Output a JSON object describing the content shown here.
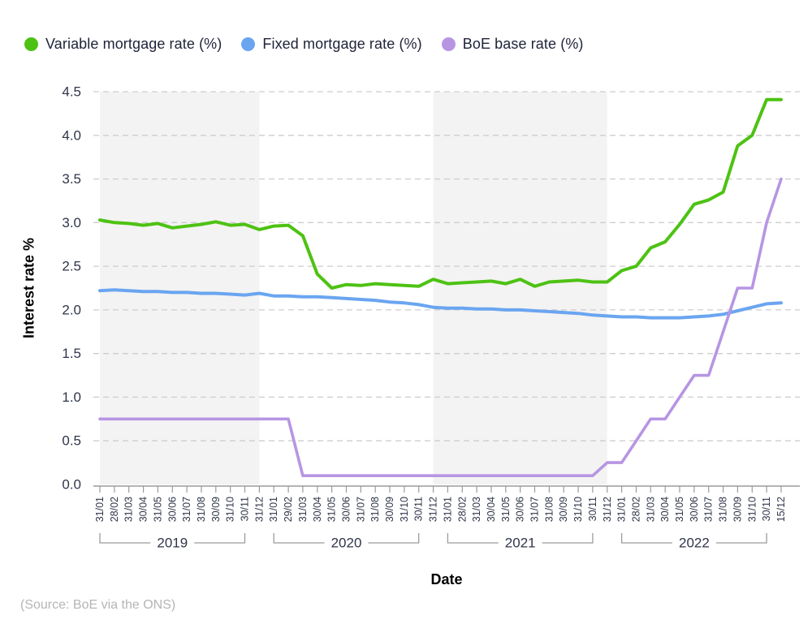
{
  "source": "(Source: BoE via the ONS)",
  "chart_data": {
    "type": "line",
    "title": "",
    "xlabel": "Date",
    "ylabel": "Interest rate %",
    "ylim": [
      0,
      4.5
    ],
    "y_tick_step": 0.5,
    "y_ticks": [
      0.0,
      0.5,
      1.0,
      1.5,
      2.0,
      2.5,
      3.0,
      3.5,
      4.0,
      4.5
    ],
    "grid": "dashed-horizontal",
    "legend_position": "top-left",
    "x_labels": [
      "31/01",
      "28/02",
      "31/03",
      "30/04",
      "31/05",
      "30/06",
      "31/07",
      "31/08",
      "30/09",
      "31/10",
      "30/11",
      "31/12",
      "31/01",
      "29/02",
      "31/03",
      "30/04",
      "31/05",
      "30/06",
      "31/07",
      "31/08",
      "30/09",
      "31/10",
      "30/11",
      "31/12",
      "31/01",
      "28/02",
      "31/03",
      "30/04",
      "31/05",
      "30/06",
      "31/07",
      "31/08",
      "30/09",
      "31/10",
      "30/11",
      "31/12",
      "31/01",
      "28/02",
      "31/03",
      "30/04",
      "31/05",
      "30/06",
      "31/07",
      "31/08",
      "30/09",
      "31/10",
      "30/11",
      "15/12"
    ],
    "year_groups": [
      {
        "label": "2019",
        "start": 0,
        "end": 10
      },
      {
        "label": "2020",
        "start": 12,
        "end": 22
      },
      {
        "label": "2021",
        "start": 24,
        "end": 34
      },
      {
        "label": "2022",
        "start": 36,
        "end": 46
      }
    ],
    "shaded_bands": [
      {
        "start": 0,
        "end": 11
      },
      {
        "start": 23,
        "end": 35
      }
    ],
    "series": [
      {
        "name": "Variable mortgage rate (%)",
        "color": "#4dc213",
        "values": [
          3.03,
          3.0,
          2.99,
          2.97,
          2.99,
          2.94,
          2.96,
          2.98,
          3.01,
          2.97,
          2.98,
          2.92,
          2.96,
          2.97,
          2.85,
          2.41,
          2.25,
          2.29,
          2.28,
          2.3,
          2.29,
          2.28,
          2.27,
          2.35,
          2.3,
          2.31,
          2.32,
          2.33,
          2.3,
          2.35,
          2.27,
          2.32,
          2.33,
          2.34,
          2.32,
          2.32,
          2.45,
          2.5,
          2.71,
          2.78,
          2.98,
          3.21,
          3.26,
          3.35,
          3.88,
          4.0,
          4.41,
          4.41
        ]
      },
      {
        "name": "Fixed mortgage rate (%)",
        "color": "#6aa5f0",
        "values": [
          2.22,
          2.23,
          2.22,
          2.21,
          2.21,
          2.2,
          2.2,
          2.19,
          2.19,
          2.18,
          2.17,
          2.19,
          2.16,
          2.16,
          2.15,
          2.15,
          2.14,
          2.13,
          2.12,
          2.11,
          2.09,
          2.08,
          2.06,
          2.03,
          2.02,
          2.02,
          2.01,
          2.01,
          2.0,
          2.0,
          1.99,
          1.98,
          1.97,
          1.96,
          1.94,
          1.93,
          1.92,
          1.92,
          1.91,
          1.91,
          1.91,
          1.92,
          1.93,
          1.95,
          1.99,
          2.03,
          2.07,
          2.08
        ]
      },
      {
        "name": "BoE base rate (%)",
        "color": "#b795e3",
        "values": [
          0.75,
          0.75,
          0.75,
          0.75,
          0.75,
          0.75,
          0.75,
          0.75,
          0.75,
          0.75,
          0.75,
          0.75,
          0.75,
          0.75,
          0.1,
          0.1,
          0.1,
          0.1,
          0.1,
          0.1,
          0.1,
          0.1,
          0.1,
          0.1,
          0.1,
          0.1,
          0.1,
          0.1,
          0.1,
          0.1,
          0.1,
          0.1,
          0.1,
          0.1,
          0.1,
          0.25,
          0.25,
          0.5,
          0.75,
          0.75,
          1.0,
          1.25,
          1.25,
          1.75,
          2.25,
          2.25,
          3.0,
          3.5
        ]
      }
    ],
    "style": {
      "band_color": "#f3f3f3",
      "gridline_color": "#cdcdcd",
      "axis_color": "#9b9b9b",
      "tick_label_color": "#30354a",
      "year_label_color": "#30354a"
    }
  }
}
